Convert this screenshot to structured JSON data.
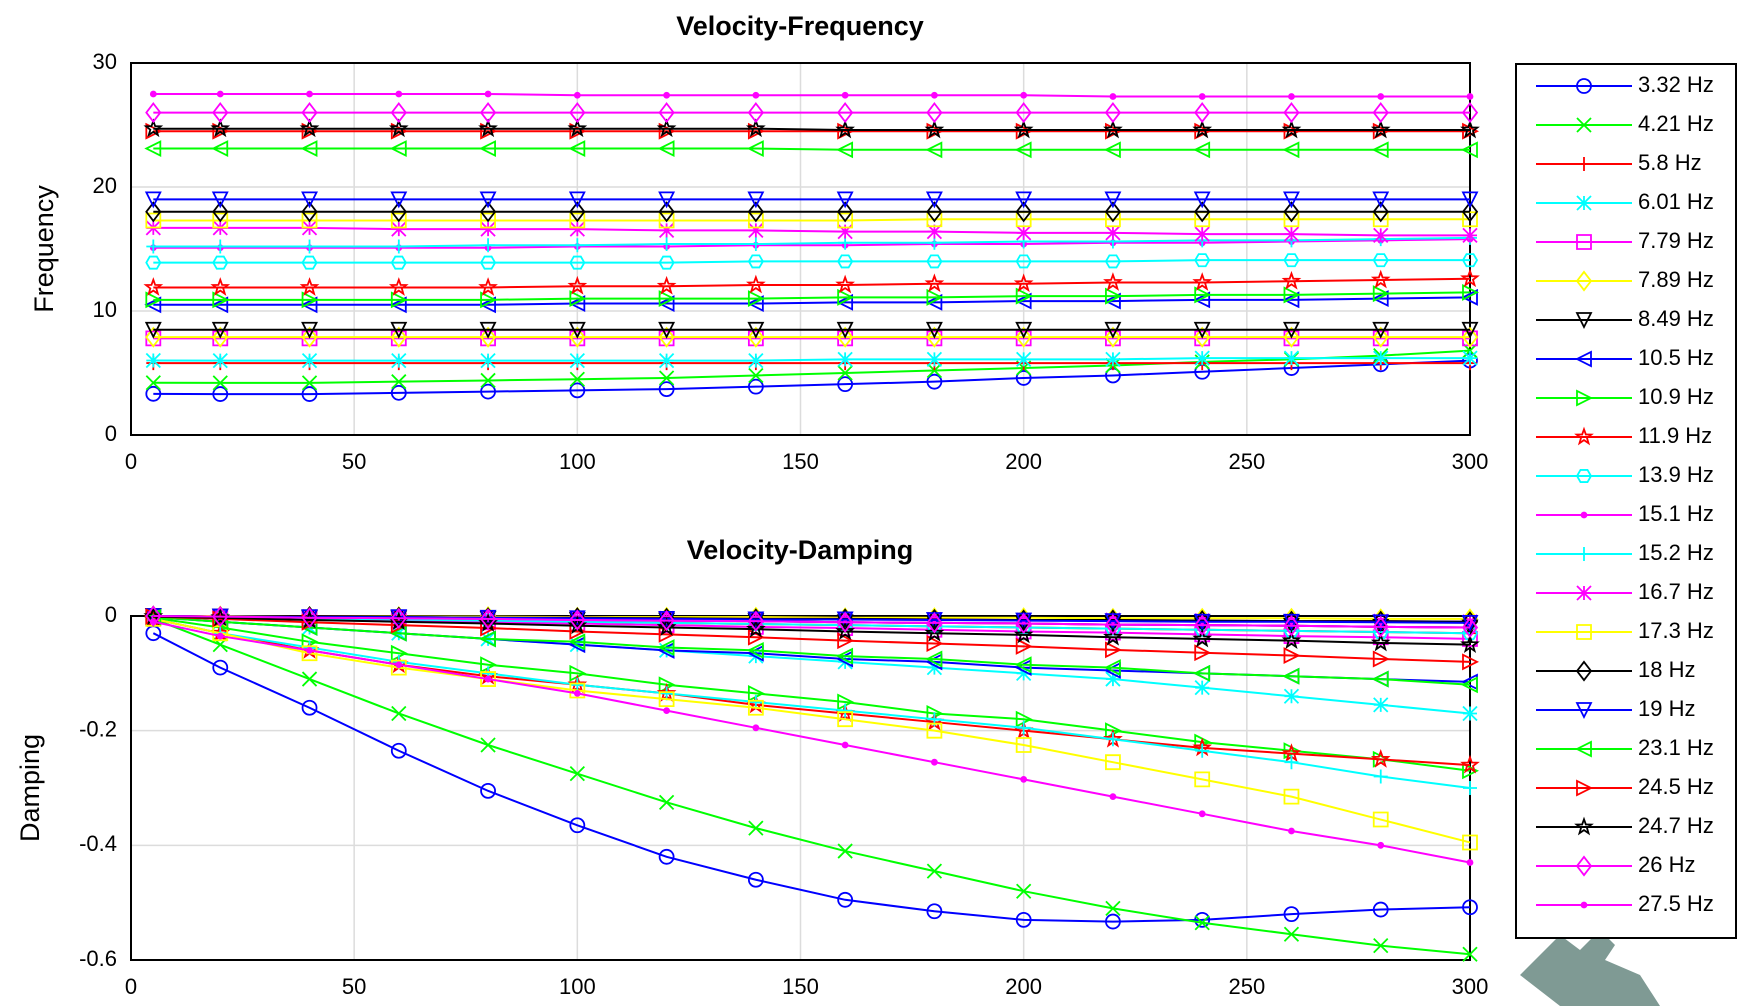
{
  "chart_data": [
    {
      "type": "line",
      "title": "Velocity-Frequency",
      "y_label": "Frequency",
      "x": [
        5,
        20,
        40,
        60,
        80,
        100,
        120,
        140,
        160,
        180,
        200,
        220,
        240,
        260,
        280,
        300
      ],
      "xlim": [
        0,
        300
      ],
      "xticks": [
        0,
        50,
        100,
        150,
        200,
        250,
        300
      ],
      "ylim": [
        0,
        30
      ],
      "yticks": [
        0,
        10,
        20,
        30
      ],
      "grid": true,
      "legend": "right",
      "series": [
        {
          "name": "3.32 Hz",
          "color": "#0000ff",
          "marker": "o",
          "values": [
            3.32,
            3.3,
            3.3,
            3.4,
            3.5,
            3.6,
            3.7,
            3.9,
            4.1,
            4.3,
            4.6,
            4.8,
            5.1,
            5.4,
            5.7,
            6.0
          ]
        },
        {
          "name": "4.21 Hz",
          "color": "#00ff00",
          "marker": "x",
          "values": [
            4.21,
            4.2,
            4.2,
            4.3,
            4.4,
            4.5,
            4.6,
            4.8,
            5.0,
            5.2,
            5.4,
            5.6,
            5.9,
            6.1,
            6.4,
            6.8
          ]
        },
        {
          "name": "5.8 Hz",
          "color": "#ff0000",
          "marker": "+",
          "values": [
            5.8,
            5.8,
            5.8,
            5.8,
            5.8,
            5.8,
            5.8,
            5.8,
            5.8,
            5.8,
            5.8,
            5.8,
            5.8,
            5.8,
            5.8,
            5.8
          ]
        },
        {
          "name": "6.01 Hz",
          "color": "#00ffff",
          "marker": "*",
          "values": [
            6.01,
            6.0,
            6.0,
            6.0,
            6.0,
            6.0,
            6.0,
            6.0,
            6.1,
            6.1,
            6.1,
            6.1,
            6.2,
            6.2,
            6.2,
            6.2
          ]
        },
        {
          "name": "7.79 Hz",
          "color": "#ff00ff",
          "marker": "s",
          "values": [
            7.79,
            7.79,
            7.79,
            7.79,
            7.79,
            7.79,
            7.79,
            7.79,
            7.79,
            7.79,
            7.79,
            7.79,
            7.79,
            7.79,
            7.79,
            7.79
          ]
        },
        {
          "name": "7.89 Hz",
          "color": "#ffff00",
          "marker": "d",
          "values": [
            7.89,
            7.89,
            7.89,
            7.89,
            7.89,
            7.89,
            7.89,
            7.89,
            7.89,
            7.89,
            7.89,
            7.89,
            7.89,
            7.89,
            7.89,
            7.89
          ]
        },
        {
          "name": "8.49 Hz",
          "color": "#000000",
          "marker": "v",
          "values": [
            8.49,
            8.49,
            8.49,
            8.49,
            8.49,
            8.49,
            8.49,
            8.49,
            8.49,
            8.49,
            8.49,
            8.49,
            8.49,
            8.49,
            8.49,
            8.49
          ]
        },
        {
          "name": "10.5 Hz",
          "color": "#0000ff",
          "marker": "<",
          "values": [
            10.5,
            10.5,
            10.5,
            10.5,
            10.5,
            10.6,
            10.6,
            10.6,
            10.7,
            10.7,
            10.8,
            10.8,
            10.9,
            10.9,
            11.0,
            11.1
          ]
        },
        {
          "name": "10.9 Hz",
          "color": "#00ff00",
          "marker": ">",
          "values": [
            10.9,
            10.9,
            10.9,
            10.9,
            10.9,
            11.0,
            11.0,
            11.0,
            11.1,
            11.1,
            11.2,
            11.2,
            11.3,
            11.3,
            11.4,
            11.5
          ]
        },
        {
          "name": "11.9 Hz",
          "color": "#ff0000",
          "marker": "p",
          "values": [
            11.9,
            11.9,
            11.9,
            11.9,
            11.9,
            12.0,
            12.0,
            12.1,
            12.1,
            12.2,
            12.2,
            12.3,
            12.3,
            12.4,
            12.5,
            12.6
          ]
        },
        {
          "name": "13.9 Hz",
          "color": "#00ffff",
          "marker": "h",
          "values": [
            13.9,
            13.9,
            13.9,
            13.9,
            13.9,
            13.9,
            13.9,
            14.0,
            14.0,
            14.0,
            14.0,
            14.0,
            14.1,
            14.1,
            14.1,
            14.1
          ]
        },
        {
          "name": "15.1 Hz",
          "color": "#ff00ff",
          "marker": ".",
          "values": [
            15.1,
            15.1,
            15.1,
            15.1,
            15.1,
            15.2,
            15.2,
            15.3,
            15.3,
            15.4,
            15.4,
            15.5,
            15.5,
            15.6,
            15.7,
            15.8
          ]
        },
        {
          "name": "15.2 Hz",
          "color": "#00ffff",
          "marker": "+",
          "values": [
            15.2,
            15.2,
            15.2,
            15.2,
            15.3,
            15.3,
            15.4,
            15.4,
            15.5,
            15.5,
            15.6,
            15.6,
            15.7,
            15.7,
            15.8,
            15.9
          ]
        },
        {
          "name": "16.7 Hz",
          "color": "#ff00ff",
          "marker": "*",
          "values": [
            16.7,
            16.7,
            16.7,
            16.6,
            16.6,
            16.6,
            16.5,
            16.5,
            16.4,
            16.4,
            16.3,
            16.3,
            16.2,
            16.2,
            16.1,
            16.1
          ]
        },
        {
          "name": "17.3 Hz",
          "color": "#ffff00",
          "marker": "s",
          "values": [
            17.3,
            17.3,
            17.3,
            17.3,
            17.3,
            17.3,
            17.3,
            17.3,
            17.3,
            17.4,
            17.4,
            17.4,
            17.4,
            17.4,
            17.4,
            17.4
          ]
        },
        {
          "name": "18 Hz",
          "color": "#000000",
          "marker": "d",
          "values": [
            18,
            18,
            18,
            18,
            18,
            18,
            18,
            18,
            18,
            18,
            18,
            18,
            18,
            18,
            18,
            18
          ]
        },
        {
          "name": "19 Hz",
          "color": "#0000ff",
          "marker": "v",
          "values": [
            19,
            19,
            19,
            19,
            19,
            19,
            19,
            19,
            19,
            19,
            19,
            19,
            19,
            19,
            19,
            19
          ]
        },
        {
          "name": "23.1 Hz",
          "color": "#00ff00",
          "marker": "<",
          "values": [
            23.1,
            23.1,
            23.1,
            23.1,
            23.1,
            23.1,
            23.1,
            23.1,
            23.0,
            23.0,
            23.0,
            23.0,
            23.0,
            23.0,
            23.0,
            23.0
          ]
        },
        {
          "name": "24.5 Hz",
          "color": "#ff0000",
          "marker": ">",
          "values": [
            24.5,
            24.5,
            24.5,
            24.5,
            24.5,
            24.5,
            24.5,
            24.5,
            24.5,
            24.5,
            24.5,
            24.5,
            24.5,
            24.5,
            24.5,
            24.5
          ]
        },
        {
          "name": "24.7 Hz",
          "color": "#000000",
          "marker": "p",
          "values": [
            24.7,
            24.7,
            24.7,
            24.7,
            24.7,
            24.7,
            24.7,
            24.7,
            24.6,
            24.6,
            24.6,
            24.6,
            24.6,
            24.6,
            24.6,
            24.6
          ]
        },
        {
          "name": "26 Hz",
          "color": "#ff00ff",
          "marker": "d",
          "values": [
            26,
            26,
            26,
            26,
            26,
            26,
            26,
            26,
            26,
            26,
            26,
            26,
            26,
            26,
            26,
            26
          ]
        },
        {
          "name": "27.5 Hz",
          "color": "#ff00ff",
          "marker": ".",
          "values": [
            27.5,
            27.5,
            27.5,
            27.5,
            27.5,
            27.4,
            27.4,
            27.4,
            27.4,
            27.4,
            27.4,
            27.3,
            27.3,
            27.3,
            27.3,
            27.3
          ]
        }
      ]
    },
    {
      "type": "line",
      "title": "Velocity-Damping",
      "y_label": "Damping",
      "x": [
        5,
        20,
        40,
        60,
        80,
        100,
        120,
        140,
        160,
        180,
        200,
        220,
        240,
        260,
        280,
        300
      ],
      "xlim": [
        0,
        300
      ],
      "xticks": [
        0,
        50,
        100,
        150,
        200,
        250,
        300
      ],
      "ylim": [
        -0.6,
        0
      ],
      "yticks": [
        -0.6,
        -0.4,
        -0.2,
        0
      ],
      "grid": true,
      "series": [
        {
          "values": [
            -0.03,
            -0.09,
            -0.16,
            -0.235,
            -0.305,
            -0.365,
            -0.42,
            -0.46,
            -0.495,
            -0.515,
            -0.53,
            -0.533,
            -0.53,
            -0.52,
            -0.512,
            -0.508
          ]
        },
        {
          "values": [
            -0.005,
            -0.05,
            -0.11,
            -0.17,
            -0.225,
            -0.275,
            -0.325,
            -0.37,
            -0.41,
            -0.445,
            -0.48,
            -0.51,
            -0.535,
            -0.555,
            -0.575,
            -0.59
          ]
        },
        {
          "values": [
            -0.001,
            -0.002,
            -0.004,
            -0.006,
            -0.008,
            -0.01,
            -0.012,
            -0.014,
            -0.016,
            -0.018,
            -0.02,
            -0.022,
            -0.024,
            -0.026,
            -0.028,
            -0.03
          ]
        },
        {
          "values": [
            -0.002,
            -0.01,
            -0.02,
            -0.03,
            -0.04,
            -0.05,
            -0.06,
            -0.07,
            -0.08,
            -0.09,
            -0.1,
            -0.11,
            -0.125,
            -0.14,
            -0.155,
            -0.17
          ]
        },
        {
          "values": [
            -0.001,
            -0.003,
            -0.005,
            -0.008,
            -0.011,
            -0.013,
            -0.016,
            -0.019,
            -0.021,
            -0.024,
            -0.027,
            -0.029,
            -0.032,
            -0.035,
            -0.037,
            -0.04
          ]
        },
        {
          "values": [
            0,
            0,
            -0.001,
            -0.001,
            -0.001,
            -0.002,
            -0.002,
            -0.002,
            -0.003,
            -0.003,
            -0.003,
            -0.004,
            -0.004,
            -0.004,
            -0.005,
            -0.005
          ]
        },
        {
          "values": [
            0,
            -0.001,
            -0.003,
            -0.004,
            -0.005,
            -0.007,
            -0.008,
            -0.009,
            -0.011,
            -0.012,
            -0.013,
            -0.015,
            -0.016,
            -0.017,
            -0.019,
            -0.02
          ]
        },
        {
          "values": [
            -0.002,
            -0.01,
            -0.02,
            -0.03,
            -0.04,
            -0.05,
            -0.06,
            -0.065,
            -0.075,
            -0.08,
            -0.09,
            -0.095,
            -0.1,
            -0.105,
            -0.11,
            -0.115
          ]
        },
        {
          "values": [
            -0.003,
            -0.02,
            -0.045,
            -0.065,
            -0.085,
            -0.1,
            -0.12,
            -0.135,
            -0.15,
            -0.17,
            -0.18,
            -0.2,
            -0.22,
            -0.235,
            -0.25,
            -0.27
          ]
        },
        {
          "values": [
            -0.005,
            -0.03,
            -0.06,
            -0.085,
            -0.105,
            -0.12,
            -0.135,
            -0.155,
            -0.17,
            -0.185,
            -0.2,
            -0.215,
            -0.23,
            -0.24,
            -0.25,
            -0.26
          ]
        },
        {
          "values": [
            -0.001,
            -0.002,
            -0.004,
            -0.006,
            -0.008,
            -0.01,
            -0.012,
            -0.014,
            -0.016,
            -0.018,
            -0.02,
            -0.022,
            -0.024,
            -0.026,
            -0.028,
            -0.03
          ]
        },
        {
          "values": [
            0,
            -0.001,
            -0.003,
            -0.004,
            -0.005,
            -0.007,
            -0.008,
            -0.009,
            -0.011,
            -0.012,
            -0.013,
            -0.015,
            -0.016,
            -0.017,
            -0.019,
            -0.02
          ]
        },
        {
          "values": [
            -0.005,
            -0.03,
            -0.055,
            -0.08,
            -0.1,
            -0.12,
            -0.135,
            -0.15,
            -0.165,
            -0.18,
            -0.195,
            -0.215,
            -0.235,
            -0.255,
            -0.28,
            -0.3
          ]
        },
        {
          "values": [
            0,
            -0.001,
            -0.001,
            -0.002,
            -0.003,
            -0.003,
            -0.004,
            -0.005,
            -0.005,
            -0.006,
            -0.007,
            -0.007,
            -0.008,
            -0.009,
            -0.009,
            -0.01
          ]
        },
        {
          "values": [
            -0.005,
            -0.03,
            -0.065,
            -0.09,
            -0.11,
            -0.13,
            -0.145,
            -0.16,
            -0.18,
            -0.2,
            -0.225,
            -0.255,
            -0.285,
            -0.315,
            -0.355,
            -0.395
          ]
        },
        {
          "values": [
            0,
            -0.001,
            -0.001,
            -0.002,
            -0.003,
            -0.003,
            -0.004,
            -0.005,
            -0.005,
            -0.006,
            -0.007,
            -0.007,
            -0.008,
            -0.009,
            -0.009,
            -0.01
          ]
        },
        {
          "values": [
            0,
            -0.001,
            -0.002,
            -0.002,
            -0.003,
            -0.004,
            -0.005,
            -0.006,
            -0.006,
            -0.007,
            -0.008,
            -0.009,
            -0.01,
            -0.01,
            -0.011,
            -0.012
          ]
        },
        {
          "values": [
            -0.002,
            -0.01,
            -0.02,
            -0.03,
            -0.04,
            -0.045,
            -0.055,
            -0.06,
            -0.07,
            -0.075,
            -0.085,
            -0.09,
            -0.1,
            -0.105,
            -0.11,
            -0.12
          ]
        },
        {
          "values": [
            -0.001,
            -0.005,
            -0.011,
            -0.016,
            -0.021,
            -0.027,
            -0.032,
            -0.037,
            -0.043,
            -0.048,
            -0.053,
            -0.059,
            -0.064,
            -0.069,
            -0.075,
            -0.08
          ]
        },
        {
          "values": [
            -0.001,
            -0.003,
            -0.007,
            -0.01,
            -0.013,
            -0.017,
            -0.02,
            -0.023,
            -0.027,
            -0.03,
            -0.033,
            -0.037,
            -0.04,
            -0.043,
            -0.047,
            -0.05
          ]
        },
        {
          "values": [
            0,
            -0.001,
            -0.003,
            -0.004,
            -0.005,
            -0.007,
            -0.008,
            -0.009,
            -0.011,
            -0.012,
            -0.013,
            -0.015,
            -0.016,
            -0.017,
            -0.019,
            -0.02
          ]
        },
        {
          "values": [
            -0.01,
            -0.035,
            -0.06,
            -0.085,
            -0.11,
            -0.135,
            -0.165,
            -0.195,
            -0.225,
            -0.255,
            -0.285,
            -0.315,
            -0.345,
            -0.375,
            -0.4,
            -0.43
          ]
        }
      ]
    }
  ]
}
